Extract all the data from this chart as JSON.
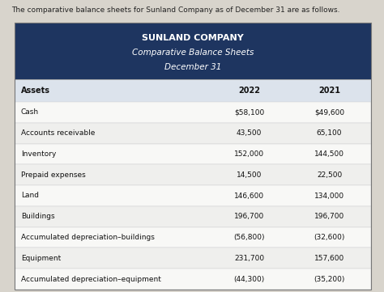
{
  "caption": "The comparative balance sheets for Sunland Company as of December 31 are as follows.",
  "title_line1": "SUNLAND COMPANY",
  "title_line2": "Comparative Balance Sheets",
  "title_line3": "December 31",
  "header_bg": "#1e3560",
  "header_text_color": "#ffffff",
  "subheader_bg": "#dce3ec",
  "page_bg": "#d8d4cc",
  "col_header": [
    "Assets",
    "2022",
    "2021"
  ],
  "rows": [
    [
      "Cash",
      "$58,100",
      "$49,600"
    ],
    [
      "Accounts receivable",
      "43,500",
      "65,100"
    ],
    [
      "Inventory",
      "152,000",
      "144,500"
    ],
    [
      "Prepaid expenses",
      "14,500",
      "22,500"
    ],
    [
      "Land",
      "146,600",
      "134,000"
    ],
    [
      "Buildings",
      "196,700",
      "196,700"
    ],
    [
      "Accumulated depreciation–buildings",
      "(56,800)",
      "(32,600)"
    ],
    [
      "Equipment",
      "231,700",
      "157,600"
    ],
    [
      "Accumulated depreciation–equipment",
      "(44,300)",
      "(35,200)"
    ]
  ],
  "figsize": [
    4.74,
    3.61
  ],
  "dpi": 100
}
